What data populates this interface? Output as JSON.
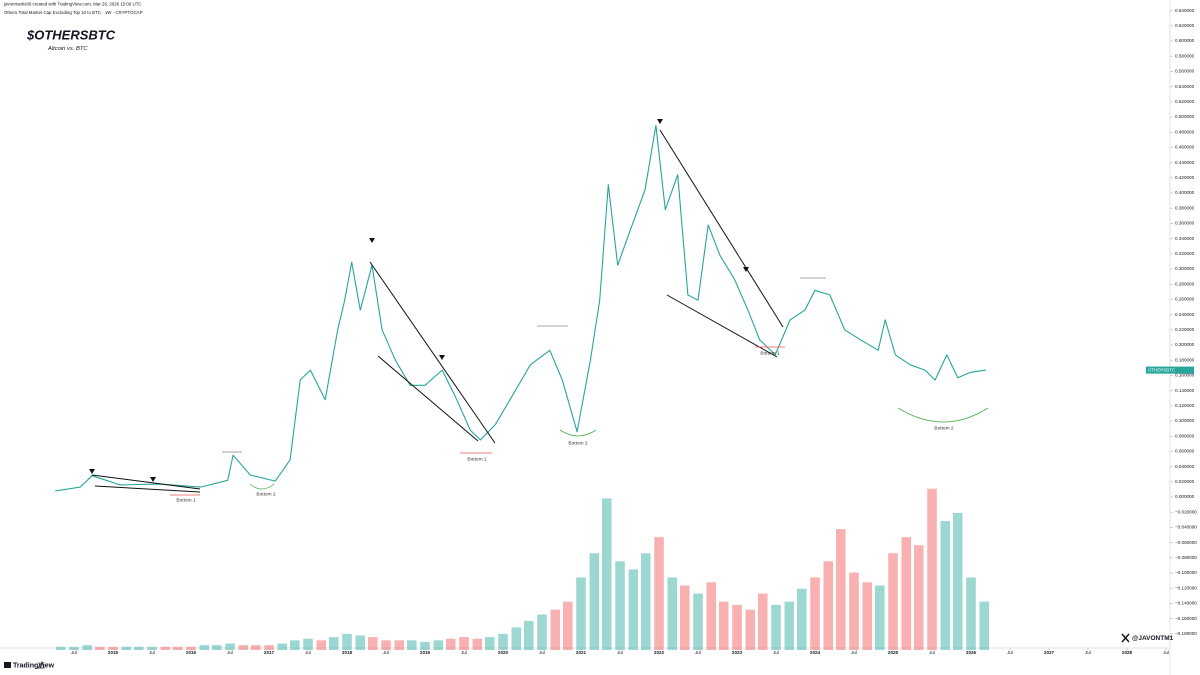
{
  "header": {
    "author_line": "javonmarks00 created with TradingView.com, Mar 26, 2026 15:06 UTC",
    "symbol_line": "Others Total Market Cap Excluding Top 10 to BTC · 1W · CRYPTOCAP"
  },
  "branding": {
    "handle": "@JAVONTM1",
    "platform": "TradingView"
  },
  "chart_data": {
    "type": "line",
    "title": "$OTHERSBTC",
    "subtitle": "Altcoin vs. BTC",
    "annotations": [
      "Bottom 1",
      "Bottom 2",
      "Bottom 1",
      "Bottom 2",
      "Bottom 1",
      "Bottom 2"
    ],
    "x": [
      2014.26,
      2014.58,
      2014.73,
      2015.09,
      2015.6,
      2016.12,
      2016.47,
      2016.54,
      2016.76,
      2017.08,
      2017.27,
      2017.4,
      2017.53,
      2017.72,
      2017.88,
      2017.97,
      2018.06,
      2018.17,
      2018.32,
      2018.45,
      2018.62,
      2018.81,
      2019.0,
      2019.22,
      2019.38,
      2019.58,
      2019.71,
      2019.9,
      2020.09,
      2020.35,
      2020.6,
      2020.76,
      2020.95,
      2021.12,
      2021.24,
      2021.35,
      2021.47,
      2021.63,
      2021.82,
      2021.96,
      2022.08,
      2022.24,
      2022.37,
      2022.5,
      2022.63,
      2022.78,
      2022.97,
      2023.14,
      2023.29,
      2023.49,
      2023.68,
      2023.87,
      2024.0,
      2024.19,
      2024.38,
      2024.58,
      2024.81,
      2024.9,
      2025.03,
      2025.22,
      2025.41,
      2025.54,
      2025.69,
      2025.83,
      2025.99,
      2026.19
    ],
    "series": [
      {
        "name": "OTHERSBTC",
        "color": "#26a69a",
        "values": [
          0.008,
          0.013,
          0.028,
          0.016,
          0.017,
          0.013,
          0.022,
          0.055,
          0.029,
          0.021,
          0.049,
          0.154,
          0.167,
          0.128,
          0.22,
          0.259,
          0.309,
          0.246,
          0.305,
          0.22,
          0.18,
          0.147,
          0.147,
          0.167,
          0.134,
          0.088,
          0.075,
          0.095,
          0.128,
          0.174,
          0.193,
          0.154,
          0.086,
          0.18,
          0.259,
          0.411,
          0.305,
          0.351,
          0.404,
          0.489,
          0.378,
          0.424,
          0.266,
          0.259,
          0.358,
          0.318,
          0.286,
          0.246,
          0.207,
          0.187,
          0.233,
          0.246,
          0.272,
          0.266,
          0.22,
          0.207,
          0.193,
          0.233,
          0.187,
          0.174,
          0.167,
          0.154,
          0.187,
          0.157,
          0.164,
          0.167
        ]
      }
    ],
    "volume": {
      "axis": "y2",
      "up_color": "#26a69a",
      "down_color": "#ef5350",
      "x": [
        2014.33,
        2014.5,
        2014.67,
        2014.83,
        2015.0,
        2015.17,
        2015.33,
        2015.5,
        2015.67,
        2015.83,
        2016.0,
        2016.17,
        2016.33,
        2016.5,
        2016.67,
        2016.83,
        2017.0,
        2017.17,
        2017.33,
        2017.5,
        2017.67,
        2017.83,
        2018.0,
        2018.17,
        2018.33,
        2018.5,
        2018.67,
        2018.83,
        2019.0,
        2019.17,
        2019.33,
        2019.5,
        2019.67,
        2019.83,
        2020.0,
        2020.17,
        2020.33,
        2020.5,
        2020.67,
        2020.83,
        2021.0,
        2021.17,
        2021.33,
        2021.5,
        2021.67,
        2021.83,
        2022.0,
        2022.17,
        2022.33,
        2022.5,
        2022.67,
        2022.83,
        2023.0,
        2023.17,
        2023.33,
        2023.5,
        2023.67,
        2023.83,
        2024.0,
        2024.17,
        2024.33,
        2024.5,
        2024.67,
        2024.83,
        2025.0,
        2025.17,
        2025.33,
        2025.5,
        2025.67,
        2025.83,
        2026.0,
        2026.17
      ],
      "values": [
        2,
        2,
        3,
        2,
        2,
        2,
        2,
        2,
        2,
        2,
        2,
        3,
        3,
        4,
        3,
        3,
        3,
        4,
        6,
        7,
        6,
        8,
        10,
        9,
        8,
        6,
        6,
        6,
        5,
        6,
        7,
        8,
        7,
        8,
        10,
        14,
        18,
        22,
        25,
        30,
        45,
        60,
        94,
        55,
        50,
        60,
        70,
        45,
        40,
        35,
        42,
        30,
        28,
        25,
        35,
        28,
        30,
        38,
        45,
        55,
        75,
        48,
        42,
        40,
        60,
        70,
        65,
        100,
        80,
        85,
        45,
        30
      ]
    },
    "xlim": [
      2013.551,
      2028.551
    ],
    "xticks": [
      {
        "value": 2014.5,
        "label": "Jul"
      },
      2015,
      {
        "value": 2015.5,
        "label": "Jul"
      },
      2016,
      {
        "value": 2016.5,
        "label": "Jul"
      },
      2017,
      {
        "value": 2017.5,
        "label": "Jul"
      },
      2018,
      {
        "value": 2018.5,
        "label": "Jul"
      },
      2019,
      {
        "value": 2019.5,
        "label": "Jul"
      },
      2020,
      {
        "value": 2020.5,
        "label": "Jul"
      },
      2021,
      {
        "value": 2021.5,
        "label": "Jul"
      },
      2022,
      {
        "value": 2022.5,
        "label": "Jul"
      },
      2023,
      {
        "value": 2023.5,
        "label": "Jul"
      },
      2024,
      {
        "value": 2024.5,
        "label": "Jul"
      },
      2025,
      {
        "value": 2025.5,
        "label": "Jul"
      },
      2026,
      {
        "value": 2026.5,
        "label": "Jul"
      },
      2027,
      {
        "value": 2027.5,
        "label": "Jul"
      },
      2028,
      {
        "value": 2028.5,
        "label": "Jul"
      }
    ],
    "ylim": [
      -0.2013,
      0.6474
    ],
    "y2lim": [
      0,
      400
    ],
    "yticks": [
      {
        "value": 0.64,
        "label": "0.640000"
      },
      {
        "value": 0.62,
        "label": "0.620000"
      },
      {
        "value": 0.6,
        "label": "0.600000"
      },
      {
        "value": 0.58,
        "label": "0.580000"
      },
      {
        "value": 0.56,
        "label": "0.560000"
      },
      {
        "value": 0.54,
        "label": "0.540000"
      },
      {
        "value": 0.52,
        "label": "0.520000"
      },
      {
        "value": 0.5,
        "label": "0.500000"
      },
      {
        "value": 0.48,
        "label": "0.480000"
      },
      {
        "value": 0.46,
        "label": "0.460000"
      },
      {
        "value": 0.44,
        "label": "0.440000"
      },
      {
        "value": 0.42,
        "label": "0.420000"
      },
      {
        "value": 0.4,
        "label": "0.400000"
      },
      {
        "value": 0.38,
        "label": "0.380000"
      },
      {
        "value": 0.36,
        "label": "0.360000"
      },
      {
        "value": 0.34,
        "label": "0.340000"
      },
      {
        "value": 0.32,
        "label": "0.320000"
      },
      {
        "value": 0.3,
        "label": "0.300000"
      },
      {
        "value": 0.28,
        "label": "0.280000"
      },
      {
        "value": 0.26,
        "label": "0.260000"
      },
      {
        "value": 0.24,
        "label": "0.240000"
      },
      {
        "value": 0.22,
        "label": "0.220000"
      },
      {
        "value": 0.2,
        "label": "0.200000"
      },
      {
        "value": 0.18,
        "label": "0.180000"
      },
      {
        "value": 0.16,
        "label": "0.160000"
      },
      {
        "value": 0.14,
        "label": "0.140000"
      },
      {
        "value": 0.12,
        "label": "0.120000"
      },
      {
        "value": 0.1,
        "label": "0.100000"
      },
      {
        "value": 0.08,
        "label": "0.080000"
      },
      {
        "value": 0.06,
        "label": "0.060000"
      },
      {
        "value": 0.04,
        "label": "0.040000"
      },
      {
        "value": 0.02,
        "label": "0.020000"
      },
      {
        "value": 0,
        "label": "0.000000"
      },
      {
        "value": -0.02,
        "label": "−0.020000"
      },
      {
        "value": -0.04,
        "label": "−0.040000"
      },
      {
        "value": -0.06,
        "label": "−0.060000"
      },
      {
        "value": -0.08,
        "label": "−0.080000"
      },
      {
        "value": -0.1,
        "label": "−0.100000"
      },
      {
        "value": -0.12,
        "label": "−0.120000"
      },
      {
        "value": -0.14,
        "label": "−0.140000"
      },
      {
        "value": -0.16,
        "label": "−0.160000"
      },
      {
        "value": -0.18,
        "label": "−0.180000"
      }
    ],
    "grid": false
  }
}
